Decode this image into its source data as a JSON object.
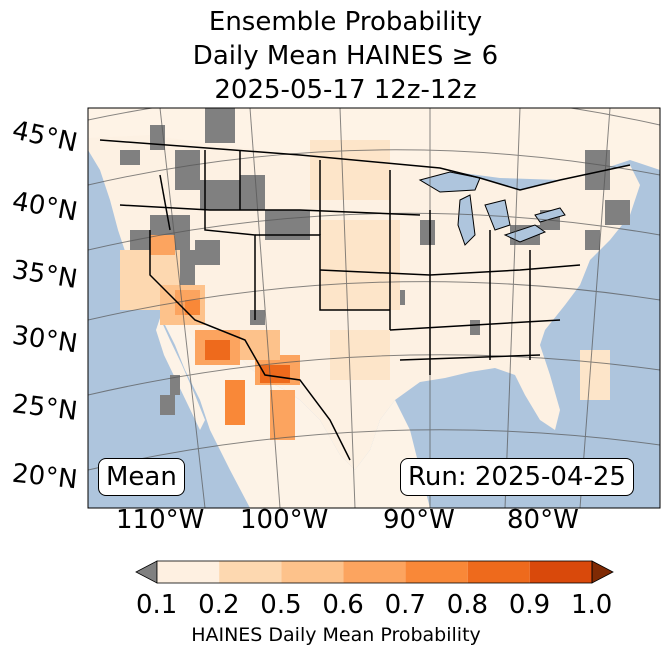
{
  "title": {
    "line1": "Ensemble Probability",
    "line2": "Daily Mean HAINES ≥ 6",
    "line3": "2025-05-17 12z-12z"
  },
  "map": {
    "region": "Continental United States",
    "latitude_labels": [
      "45°N",
      "40°N",
      "35°N",
      "30°N",
      "25°N",
      "20°N"
    ],
    "longitude_labels": [
      "110°W",
      "100°W",
      "90°W",
      "80°W"
    ],
    "inset_left": "Mean",
    "inset_right": "Run: 2025-04-25",
    "colors": {
      "ocean": "#aec5dd",
      "land": "#fdf5ec",
      "missing_terrain": "#808080",
      "borders": "#000000"
    }
  },
  "colorbar": {
    "ticks": [
      "0.1",
      "0.2",
      "0.5",
      "0.6",
      "0.7",
      "0.8",
      "0.9",
      "1.0"
    ],
    "colors": [
      "#fef0e1",
      "#fdd8b0",
      "#fdc28b",
      "#fca45f",
      "#f98838",
      "#ee6a1c",
      "#d9490b"
    ],
    "under_color": "#808080",
    "over_color": "#7f2a04",
    "label": "HAINES Daily Mean Probability"
  }
}
